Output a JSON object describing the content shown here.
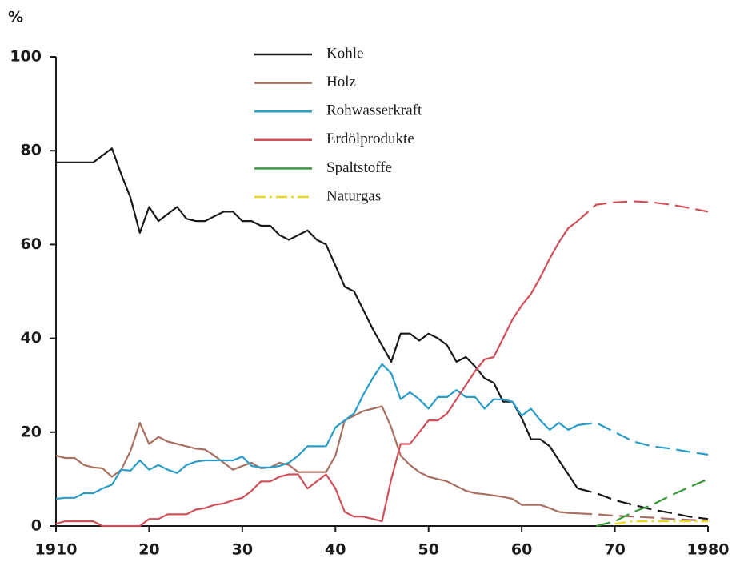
{
  "chart_data": {
    "type": "line",
    "ylabel": "%",
    "x": [
      1910,
      1911,
      1912,
      1913,
      1914,
      1915,
      1916,
      1917,
      1918,
      1919,
      1920,
      1921,
      1922,
      1923,
      1924,
      1925,
      1926,
      1927,
      1928,
      1929,
      1930,
      1931,
      1932,
      1933,
      1934,
      1935,
      1936,
      1937,
      1938,
      1939,
      1940,
      1941,
      1942,
      1943,
      1944,
      1945,
      1946,
      1947,
      1948,
      1949,
      1950,
      1951,
      1952,
      1953,
      1954,
      1955,
      1956,
      1957,
      1958,
      1959,
      1960,
      1961,
      1962,
      1963,
      1964,
      1965,
      1966,
      1968,
      1970,
      1972,
      1974,
      1976,
      1978,
      1980
    ],
    "series": [
      {
        "name": "Kohle",
        "color": "#1a1a1a",
        "values": [
          77.5,
          77.5,
          77.5,
          77.5,
          77.5,
          79,
          80.5,
          75,
          70,
          62.5,
          68,
          65,
          66.5,
          68,
          65.5,
          65,
          65,
          66,
          67,
          67,
          65,
          65,
          64,
          64,
          62,
          61,
          62,
          63,
          61,
          60,
          55.5,
          51,
          50,
          46,
          42,
          38.5,
          35,
          41,
          41,
          39.5,
          41,
          40,
          38.5,
          35,
          36,
          34,
          31.5,
          30.5,
          26.5,
          26.5,
          23,
          18.5,
          18.5,
          17,
          14,
          11,
          8,
          7,
          5.5,
          4.5,
          3.5,
          2.8,
          2,
          1.5
        ]
      },
      {
        "name": "Holz",
        "color": "#a87060",
        "values": [
          15,
          14.5,
          14.5,
          13,
          12.5,
          12.3,
          10.5,
          12,
          16,
          22,
          17.5,
          19,
          18,
          17.5,
          17,
          16.5,
          16.3,
          15,
          13.5,
          12,
          12.8,
          13.5,
          12.3,
          12.5,
          13.5,
          13,
          11.5,
          11.5,
          11.5,
          11.5,
          15,
          22.5,
          23.5,
          24.5,
          25,
          25.5,
          21,
          15,
          13,
          11.5,
          10.5,
          10,
          9.5,
          8.5,
          7.5,
          7,
          6.8,
          6.5,
          6.2,
          5.8,
          4.5,
          4.5,
          4.5,
          3.8,
          3,
          2.8,
          2.7,
          2.5,
          2.2,
          2,
          1.8,
          1.5,
          1.3,
          1.2
        ]
      },
      {
        "name": "Rohwasserkraft",
        "color": "#2a9cc8",
        "values": [
          5.8,
          6,
          6,
          7,
          7,
          8,
          8.8,
          12,
          11.8,
          14,
          12,
          13,
          12,
          11.3,
          13,
          13.7,
          14,
          14,
          14,
          14,
          14.8,
          12.8,
          12.5,
          12.5,
          12.8,
          13.5,
          15,
          17,
          17,
          17,
          21,
          22.5,
          24,
          28,
          31.5,
          34.5,
          32.5,
          27,
          28.5,
          27,
          25,
          27.5,
          27.5,
          29,
          27.5,
          27.5,
          25,
          27,
          27,
          26.5,
          23.5,
          25,
          22.5,
          20.5,
          22,
          20.5,
          21.5,
          22,
          20,
          18,
          17,
          16.5,
          15.8,
          15.2
        ]
      },
      {
        "name": "Erdölprodukte",
        "color": "#d0505a",
        "values": [
          0.5,
          1,
          1,
          1,
          1,
          0,
          0,
          0,
          0,
          0,
          1.5,
          1.5,
          2.5,
          2.5,
          2.5,
          3.5,
          3.8,
          4.5,
          4.8,
          5.5,
          6,
          7.5,
          9.5,
          9.5,
          10.5,
          11,
          11,
          8,
          9.5,
          11,
          8,
          3,
          2,
          2,
          1.5,
          1,
          10,
          17.5,
          17.5,
          20,
          22.5,
          22.5,
          24,
          27,
          30,
          33,
          35.5,
          36,
          40,
          44,
          47,
          49.5,
          53,
          57,
          60.5,
          63.5,
          65,
          68.5,
          69,
          69.2,
          69,
          68.5,
          67.8,
          67
        ]
      },
      {
        "name": "Spaltstoffe",
        "color": "#3a9a3a",
        "values": [
          null,
          null,
          null,
          null,
          null,
          null,
          null,
          null,
          null,
          null,
          null,
          null,
          null,
          null,
          null,
          null,
          null,
          null,
          null,
          null,
          null,
          null,
          null,
          null,
          null,
          null,
          null,
          null,
          null,
          null,
          null,
          null,
          null,
          null,
          null,
          null,
          null,
          null,
          null,
          null,
          null,
          null,
          null,
          null,
          null,
          null,
          null,
          null,
          null,
          null,
          null,
          null,
          null,
          null,
          null,
          null,
          null,
          0,
          1,
          3,
          4.5,
          6.5,
          8.3,
          10
        ]
      },
      {
        "name": "Naturgas",
        "color": "#e8d820",
        "values": [
          null,
          null,
          null,
          null,
          null,
          null,
          null,
          null,
          null,
          null,
          null,
          null,
          null,
          null,
          null,
          null,
          null,
          null,
          null,
          null,
          null,
          null,
          null,
          null,
          null,
          null,
          null,
          null,
          null,
          null,
          null,
          null,
          null,
          null,
          null,
          null,
          null,
          null,
          null,
          null,
          null,
          null,
          null,
          null,
          null,
          null,
          null,
          null,
          null,
          null,
          null,
          null,
          null,
          null,
          null,
          null,
          null,
          null,
          0.5,
          1,
          1,
          1,
          1,
          1
        ]
      }
    ],
    "dashed_after": 1966,
    "xlim": [
      1910,
      1980
    ],
    "xticks": [
      1910,
      {
        "value": 1920,
        "label": "20"
      },
      {
        "value": 1930,
        "label": "30"
      },
      {
        "value": 1940,
        "label": "40"
      },
      {
        "value": 1950,
        "label": "50"
      },
      {
        "value": 1960,
        "label": "60"
      },
      {
        "value": 1970,
        "label": "70"
      },
      1980
    ],
    "ylim": [
      0,
      100
    ],
    "yticks": [
      0,
      20,
      40,
      60,
      80,
      100
    ],
    "grid": false
  }
}
